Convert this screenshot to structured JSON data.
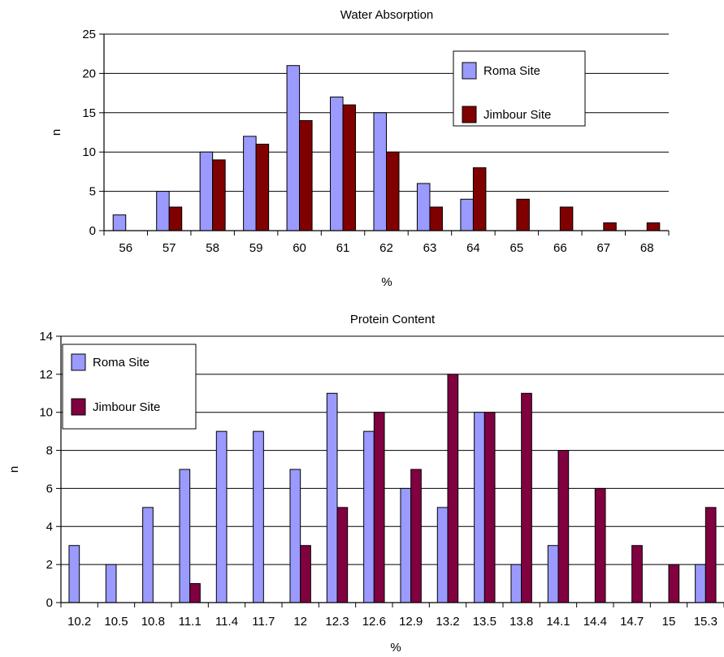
{
  "chart_data": [
    {
      "type": "bar",
      "title": "Water Absorption",
      "xlabel": "%",
      "ylabel": "n",
      "ylim": [
        0,
        25
      ],
      "yticks": [
        0,
        5,
        10,
        15,
        20,
        25
      ],
      "grid": true,
      "legend_position": "top-right",
      "categories": [
        "56",
        "57",
        "58",
        "59",
        "60",
        "61",
        "62",
        "63",
        "64",
        "65",
        "66",
        "67",
        "68"
      ],
      "series": [
        {
          "name": "Roma Site",
          "color": "#9a9aff",
          "values": [
            2,
            5,
            10,
            12,
            21,
            17,
            15,
            6,
            4,
            0,
            0,
            0,
            0
          ]
        },
        {
          "name": "Jimbour Site",
          "color": "#800000",
          "values": [
            0,
            3,
            9,
            11,
            14,
            16,
            10,
            3,
            8,
            4,
            3,
            1,
            1
          ]
        }
      ]
    },
    {
      "type": "bar",
      "title": "Protein Content",
      "xlabel": "%",
      "ylabel": "n",
      "ylim": [
        0,
        14
      ],
      "yticks": [
        0,
        2,
        4,
        6,
        8,
        10,
        12,
        14
      ],
      "grid": true,
      "legend_position": "top-left",
      "categories": [
        "10.2",
        "10.5",
        "10.8",
        "11.1",
        "11.4",
        "11.7",
        "12",
        "12.3",
        "12.6",
        "12.9",
        "13.2",
        "13.5",
        "13.8",
        "14.1",
        "14.4",
        "14.7",
        "15",
        "15.3"
      ],
      "series": [
        {
          "name": "Roma Site",
          "color": "#9a9aff",
          "values": [
            3,
            2,
            5,
            7,
            9,
            9,
            7,
            11,
            9,
            6,
            5,
            10,
            2,
            3,
            0,
            0,
            0,
            2
          ]
        },
        {
          "name": "Jimbour Site",
          "color": "#800040",
          "values": [
            0,
            0,
            0,
            1,
            0,
            0,
            3,
            5,
            10,
            7,
            12,
            10,
            11,
            8,
            6,
            3,
            2,
            5
          ]
        }
      ]
    }
  ]
}
